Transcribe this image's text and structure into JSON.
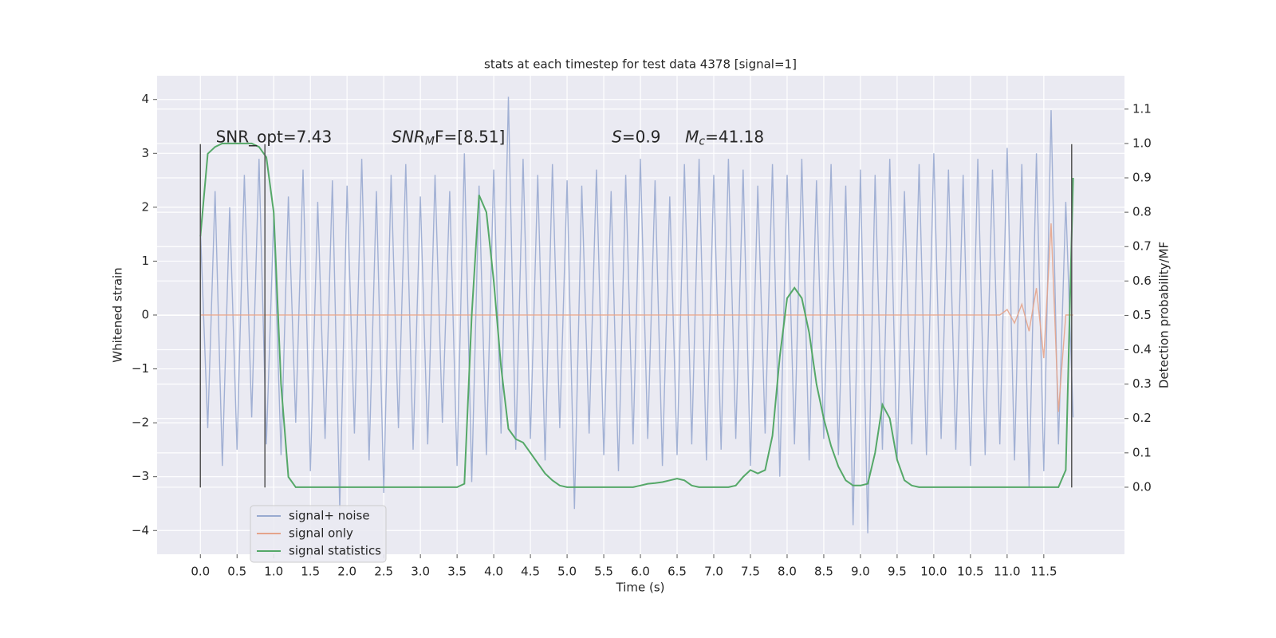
{
  "chart_data": {
    "type": "line",
    "title": "stats at each timestep for test data 4378 [signal=1]",
    "xlabel": "Time (s)",
    "ylabel": "Whitened strain",
    "y2label": "Detection probability/MF",
    "x": [
      0,
      0.1,
      0.2,
      0.3,
      0.4,
      0.5,
      0.6,
      0.7,
      0.8,
      0.9,
      1,
      1.1,
      1.2,
      1.3,
      1.4,
      1.5,
      1.6,
      1.7,
      1.8,
      1.9,
      2,
      2.1,
      2.2,
      2.3,
      2.4,
      2.5,
      2.6,
      2.7,
      2.8,
      2.9,
      3,
      3.1,
      3.2,
      3.3,
      3.4,
      3.5,
      3.6,
      3.7,
      3.8,
      3.9,
      4,
      4.1,
      4.2,
      4.3,
      4.4,
      4.5,
      4.6,
      4.7,
      4.8,
      4.9,
      5,
      5.1,
      5.2,
      5.3,
      5.4,
      5.5,
      5.6,
      5.7,
      5.8,
      5.9,
      6,
      6.1,
      6.2,
      6.3,
      6.4,
      6.5,
      6.6,
      6.7,
      6.8,
      6.9,
      7,
      7.1,
      7.2,
      7.3,
      7.4,
      7.5,
      7.6,
      7.7,
      7.8,
      7.9,
      8,
      8.1,
      8.2,
      8.3,
      8.4,
      8.5,
      8.6,
      8.7,
      8.8,
      8.9,
      9,
      9.1,
      9.2,
      9.3,
      9.4,
      9.5,
      9.6,
      9.7,
      9.8,
      9.9,
      10,
      10.1,
      10.2,
      10.3,
      10.4,
      10.5,
      10.6,
      10.7,
      10.8,
      10.9,
      11,
      11.1,
      11.2,
      11.3,
      11.4,
      11.5,
      11.6,
      11.7,
      11.8,
      11.9
    ],
    "series": [
      {
        "name": "signal+ noise",
        "color": "#99aad0",
        "axis": "y",
        "values": [
          1.6,
          -2.1,
          2.3,
          -2.8,
          2.0,
          -2.5,
          2.6,
          -1.9,
          2.9,
          -2.4,
          1.8,
          -2.6,
          2.2,
          -2.0,
          2.7,
          -2.9,
          2.1,
          -2.3,
          2.5,
          -3.6,
          2.4,
          -2.2,
          2.9,
          -2.7,
          2.3,
          -3.3,
          2.6,
          -2.1,
          2.8,
          -2.5,
          2.2,
          -2.4,
          2.6,
          -2.0,
          2.3,
          -2.8,
          3.0,
          -3.1,
          2.4,
          -2.6,
          2.7,
          -2.2,
          4.05,
          -2.5,
          2.9,
          -2.3,
          2.6,
          -2.7,
          2.8,
          -2.1,
          2.5,
          -3.6,
          2.4,
          -2.2,
          2.7,
          -2.6,
          2.3,
          -2.9,
          2.6,
          -2.4,
          2.9,
          -2.3,
          2.5,
          -2.8,
          2.2,
          -2.6,
          2.8,
          -2.4,
          2.9,
          -2.7,
          2.6,
          -2.5,
          2.9,
          -2.3,
          2.7,
          -2.8,
          2.4,
          -2.2,
          2.8,
          -3.0,
          2.6,
          -2.4,
          2.9,
          -2.7,
          2.5,
          -2.3,
          2.8,
          -2.6,
          2.4,
          -3.9,
          2.7,
          -4.05,
          2.6,
          -2.5,
          2.9,
          -2.7,
          2.3,
          -2.4,
          2.8,
          -2.6,
          3.0,
          -2.3,
          2.7,
          -2.5,
          2.6,
          -2.8,
          2.9,
          -2.6,
          2.7,
          -2.4,
          3.1,
          -2.7,
          2.8,
          -3.2,
          3.0,
          -2.9,
          3.8,
          -2.4,
          2.1,
          -1.9
        ]
      },
      {
        "name": "signal only",
        "color": "#e5a48b",
        "axis": "y",
        "values": [
          0,
          0,
          0,
          0,
          0,
          0,
          0,
          0,
          0,
          0,
          0,
          0,
          0,
          0,
          0,
          0,
          0,
          0,
          0,
          0,
          0,
          0,
          0,
          0,
          0,
          0,
          0,
          0,
          0,
          0,
          0,
          0,
          0,
          0,
          0,
          0,
          0,
          0,
          0,
          0,
          0,
          0,
          0,
          0,
          0,
          0,
          0,
          0,
          0,
          0,
          0,
          0,
          0,
          0,
          0,
          0,
          0,
          0,
          0,
          0,
          0,
          0,
          0,
          0,
          0,
          0,
          0,
          0,
          0,
          0,
          0,
          0,
          0,
          0,
          0,
          0,
          0,
          0,
          0,
          0,
          0,
          0,
          0,
          0,
          0,
          0,
          0,
          0,
          0,
          0,
          0,
          0,
          0,
          0,
          0,
          0,
          0,
          0,
          0,
          0,
          0,
          0,
          0,
          0,
          0,
          0,
          0,
          0,
          0,
          0,
          0.1,
          -0.15,
          0.2,
          -0.3,
          0.5,
          -0.8,
          1.7,
          -1.8,
          0,
          0
        ]
      },
      {
        "name": "signal statistics",
        "color": "#55a868",
        "axis": "y2",
        "values": [
          0.73,
          0.97,
          0.99,
          1.0,
          1.0,
          1.0,
          1.0,
          1.0,
          0.99,
          0.96,
          0.8,
          0.3,
          0.03,
          0,
          0,
          0,
          0,
          0,
          0,
          0,
          0,
          0,
          0,
          0,
          0,
          0,
          0,
          0,
          0,
          0,
          0,
          0,
          0,
          0,
          0,
          0,
          0.01,
          0.5,
          0.85,
          0.8,
          0.6,
          0.35,
          0.17,
          0.14,
          0.13,
          0.1,
          0.07,
          0.04,
          0.02,
          0.005,
          0,
          0,
          0,
          0,
          0,
          0,
          0,
          0,
          0,
          0,
          0.005,
          0.01,
          0.012,
          0.015,
          0.02,
          0.025,
          0.02,
          0.005,
          0,
          0,
          0,
          0,
          0,
          0.005,
          0.03,
          0.05,
          0.04,
          0.05,
          0.15,
          0.38,
          0.55,
          0.58,
          0.55,
          0.45,
          0.3,
          0.2,
          0.12,
          0.06,
          0.02,
          0.005,
          0.005,
          0.01,
          0.1,
          0.24,
          0.2,
          0.08,
          0.02,
          0.005,
          0,
          0,
          0,
          0,
          0,
          0,
          0,
          0,
          0,
          0,
          0,
          0,
          0,
          0,
          0,
          0,
          0,
          0,
          0,
          0,
          0.05,
          0.9
        ]
      }
    ],
    "vlines": {
      "x": [
        0,
        0.88,
        11.88
      ],
      "ymin": -3.2,
      "ymax": 3.17,
      "color": "#555555"
    },
    "annotations": [
      {
        "x": 0.21,
        "y": 3.29,
        "parts": [
          {
            "text": "SNR_opt=7.43"
          }
        ]
      },
      {
        "x": 2.61,
        "y": 3.29,
        "parts": [
          {
            "text": "SNR",
            "italic": true
          },
          {
            "text": "M",
            "italic": true,
            "sub": true
          },
          {
            "text": "F=[8.51]"
          }
        ]
      },
      {
        "x": 5.61,
        "y": 3.29,
        "parts": [
          {
            "text": "S",
            "italic": true
          },
          {
            "text": "=0.9"
          }
        ]
      },
      {
        "x": 6.61,
        "y": 3.29,
        "parts": [
          {
            "text": "M",
            "italic": true
          },
          {
            "text": "c",
            "italic": true,
            "sub": true
          },
          {
            "text": "=41.18"
          }
        ]
      }
    ],
    "xlim": [
      -0.59,
      12.6
    ],
    "ylim": [
      -4.44,
      4.44
    ],
    "y2lim": [
      -0.195,
      1.197
    ],
    "xticks": [
      {
        "value": 0,
        "label": "0.0"
      },
      0.5,
      {
        "value": 1,
        "label": "1.0"
      },
      1.5,
      {
        "value": 2,
        "label": "2.0"
      },
      2.5,
      {
        "value": 3,
        "label": "3.0"
      },
      3.5,
      {
        "value": 4,
        "label": "4.0"
      },
      4.5,
      {
        "value": 5,
        "label": "5.0"
      },
      5.5,
      {
        "value": 6,
        "label": "6.0"
      },
      6.5,
      {
        "value": 7,
        "label": "7.0"
      },
      7.5,
      {
        "value": 8,
        "label": "8.0"
      },
      8.5,
      {
        "value": 9,
        "label": "9.0"
      },
      9.5,
      {
        "value": 10,
        "label": "10.0"
      },
      10.5,
      {
        "value": 11,
        "label": "11.0"
      },
      11.5
    ],
    "yticks": [
      {
        "value": -4,
        "label": "−4"
      },
      {
        "value": -3,
        "label": "−3"
      },
      {
        "value": -2,
        "label": "−2"
      },
      {
        "value": -1,
        "label": "−1"
      },
      0,
      1,
      2,
      3,
      4
    ],
    "y2ticks": [
      {
        "value": 0,
        "label": "0.0"
      },
      0.1,
      0.2,
      0.3,
      0.4,
      0.5,
      0.6,
      0.7,
      0.8,
      0.9,
      {
        "value": 1,
        "label": "1.0"
      },
      1.1
    ],
    "grid": true,
    "legend": "lower left"
  }
}
